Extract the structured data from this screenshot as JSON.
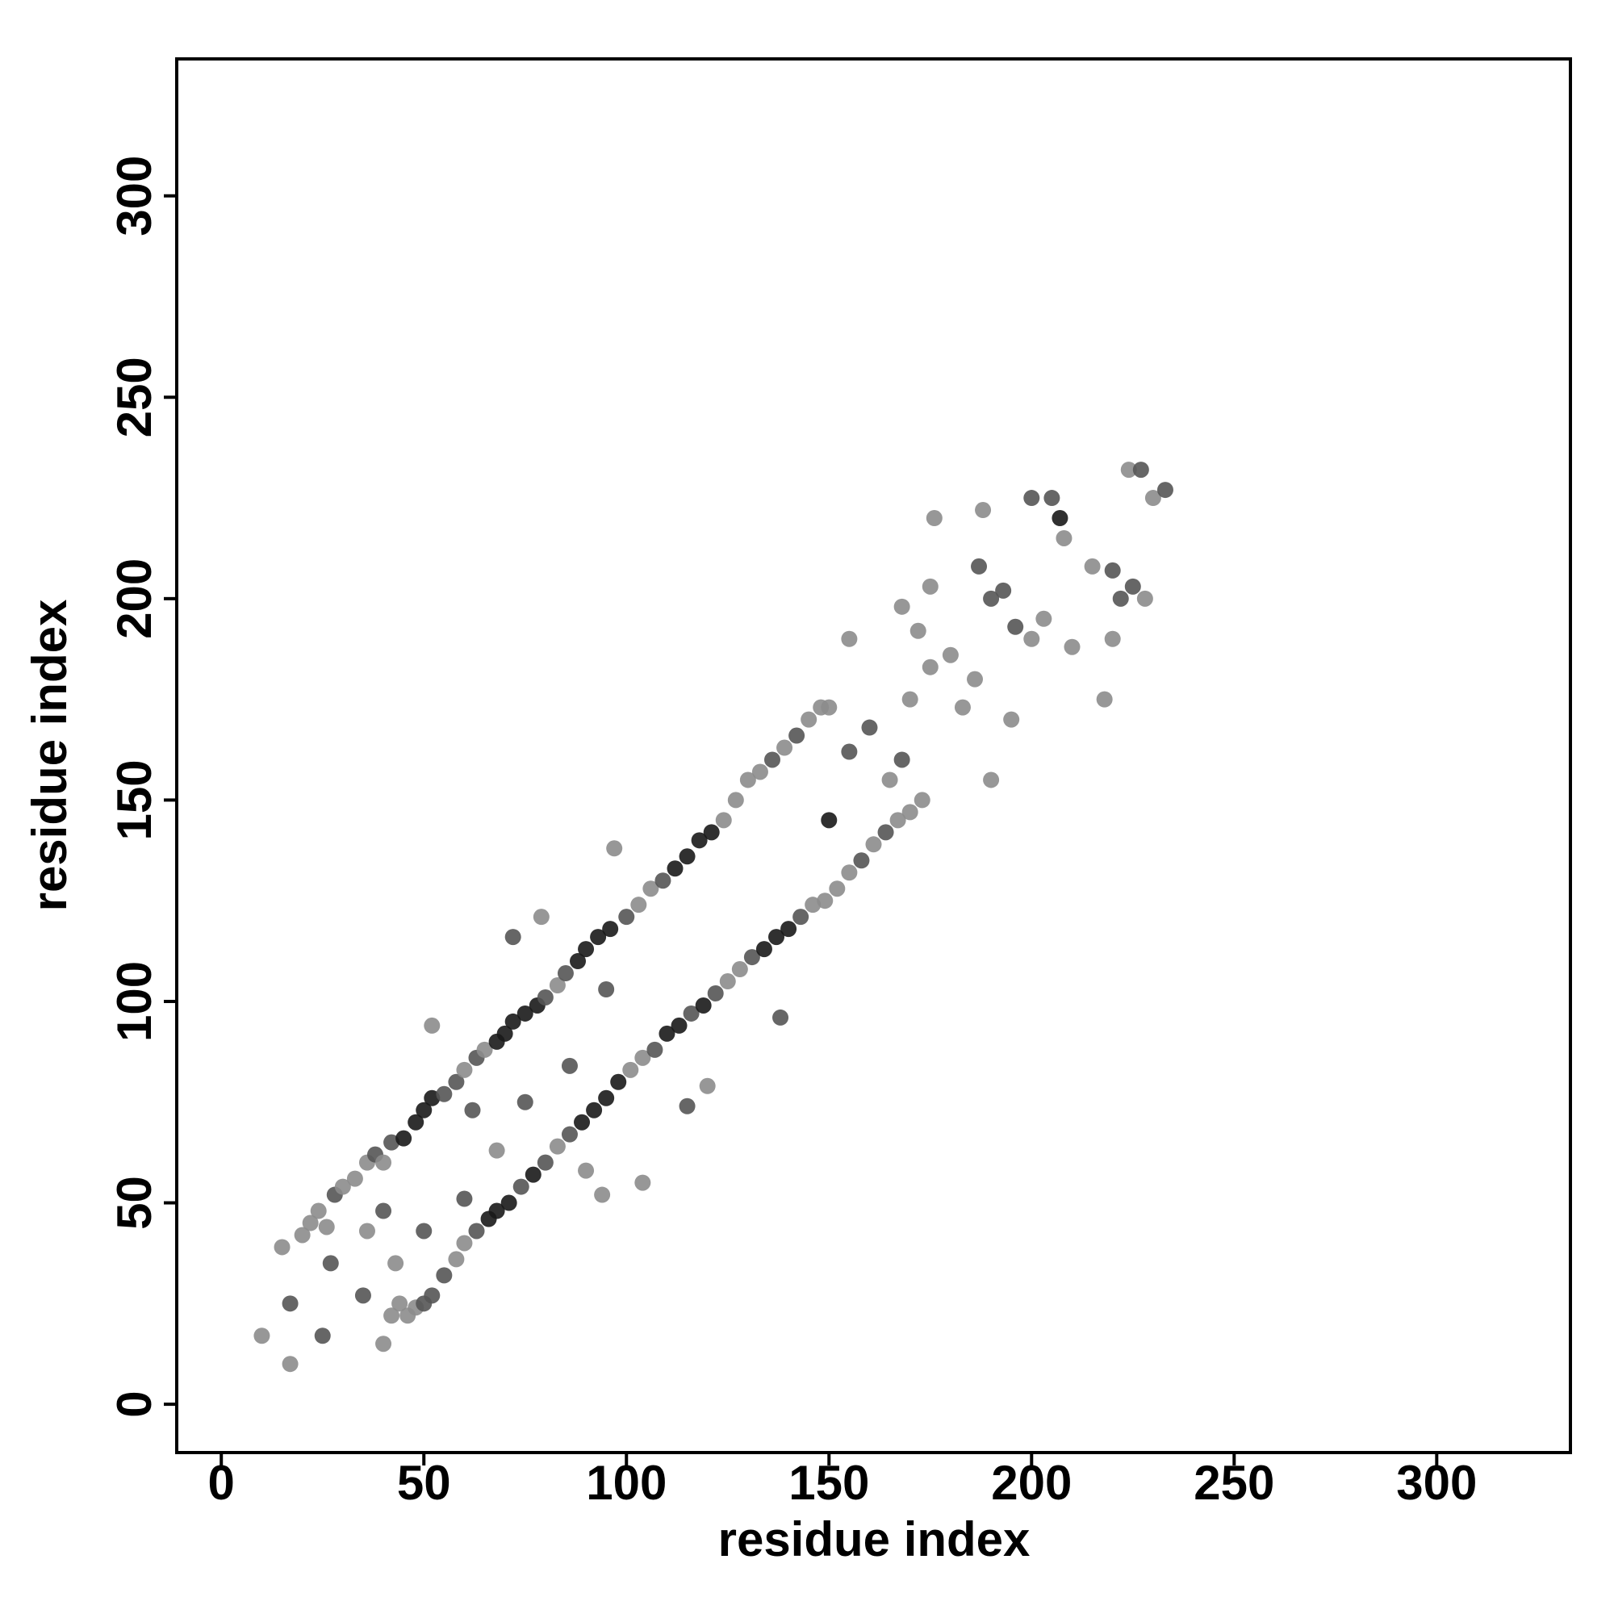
{
  "chart_data": {
    "type": "scatter",
    "xlabel": "residue index",
    "ylabel": "residue index",
    "xlim": [
      -11,
      333
    ],
    "ylim": [
      -12,
      334
    ],
    "xticks": [
      0,
      50,
      100,
      150,
      200,
      250,
      300
    ],
    "yticks": [
      0,
      50,
      100,
      150,
      200,
      250,
      300
    ],
    "x": [
      10,
      15,
      17,
      17,
      20,
      22,
      24,
      25,
      26,
      27,
      28,
      30,
      33,
      36,
      38,
      40,
      42,
      45,
      48,
      50,
      52,
      55,
      58,
      60,
      63,
      65,
      68,
      70,
      72,
      75,
      78,
      80,
      83,
      85,
      88,
      90,
      93,
      96,
      100,
      103,
      106,
      109,
      112,
      115,
      118,
      121,
      124,
      127,
      130,
      133,
      136,
      139,
      142,
      145,
      148,
      150,
      40,
      42,
      44,
      46,
      48,
      50,
      52,
      55,
      58,
      60,
      63,
      66,
      68,
      71,
      74,
      77,
      80,
      83,
      86,
      89,
      92,
      95,
      98,
      101,
      104,
      107,
      110,
      113,
      116,
      119,
      122,
      125,
      128,
      131,
      134,
      137,
      140,
      143,
      146,
      149,
      152,
      155,
      158,
      161,
      164,
      167,
      170,
      173,
      35,
      36,
      40,
      43,
      50,
      52,
      60,
      62,
      68,
      72,
      75,
      79,
      86,
      90,
      94,
      95,
      97,
      104,
      115,
      120,
      138,
      150,
      155,
      155,
      160,
      165,
      168,
      170,
      172,
      175,
      180,
      183,
      186,
      187,
      188,
      190,
      190,
      193,
      195,
      196,
      200,
      200,
      203,
      205,
      207,
      208,
      210,
      215,
      218,
      220,
      220,
      222,
      224,
      225,
      227,
      228,
      230,
      233,
      176,
      168,
      175
    ],
    "values": [
      17,
      39,
      10,
      25,
      42,
      45,
      48,
      17,
      44,
      35,
      52,
      54,
      56,
      60,
      62,
      60,
      65,
      66,
      70,
      73,
      76,
      77,
      80,
      83,
      86,
      88,
      90,
      92,
      95,
      97,
      99,
      101,
      104,
      107,
      110,
      113,
      116,
      118,
      121,
      124,
      128,
      130,
      133,
      136,
      140,
      142,
      145,
      150,
      155,
      157,
      160,
      163,
      166,
      170,
      173,
      173,
      15,
      22,
      25,
      22,
      24,
      25,
      27,
      32,
      36,
      40,
      43,
      46,
      48,
      50,
      54,
      57,
      60,
      64,
      67,
      70,
      73,
      76,
      80,
      83,
      86,
      88,
      92,
      94,
      97,
      99,
      102,
      105,
      108,
      111,
      113,
      116,
      118,
      121,
      124,
      125,
      128,
      132,
      135,
      139,
      142,
      145,
      147,
      150,
      27,
      43,
      48,
      35,
      43,
      94,
      51,
      73,
      63,
      116,
      75,
      121,
      84,
      58,
      52,
      103,
      138,
      55,
      74,
      79,
      96,
      145,
      162,
      190,
      168,
      155,
      160,
      175,
      192,
      183,
      186,
      173,
      180,
      208,
      222,
      155,
      200,
      202,
      170,
      193,
      225,
      190,
      195,
      225,
      220,
      215,
      188,
      208,
      175,
      207,
      190,
      200,
      232,
      203,
      232,
      200,
      225,
      227,
      220,
      198,
      203
    ],
    "colors": [
      "#8c8c8c",
      "#8c8c8c",
      "#8c8c8c",
      "#555555",
      "#8c8c8c",
      "#8c8c8c",
      "#8c8c8c",
      "#555555",
      "#8c8c8c",
      "#555555",
      "#555555",
      "#8c8c8c",
      "#8c8c8c",
      "#8c8c8c",
      "#555555",
      "#8c8c8c",
      "#555555",
      "#1a1a1a",
      "#1a1a1a",
      "#1a1a1a",
      "#1a1a1a",
      "#555555",
      "#555555",
      "#8c8c8c",
      "#555555",
      "#8c8c8c",
      "#1a1a1a",
      "#1a1a1a",
      "#1a1a1a",
      "#1a1a1a",
      "#1a1a1a",
      "#555555",
      "#8c8c8c",
      "#555555",
      "#1a1a1a",
      "#1a1a1a",
      "#1a1a1a",
      "#1a1a1a",
      "#555555",
      "#8c8c8c",
      "#8c8c8c",
      "#555555",
      "#1a1a1a",
      "#1a1a1a",
      "#1a1a1a",
      "#1a1a1a",
      "#8c8c8c",
      "#8c8c8c",
      "#8c8c8c",
      "#8c8c8c",
      "#555555",
      "#8c8c8c",
      "#555555",
      "#8c8c8c",
      "#8c8c8c",
      "#8c8c8c",
      "#8c8c8c",
      "#8c8c8c",
      "#8c8c8c",
      "#8c8c8c",
      "#8c8c8c",
      "#555555",
      "#555555",
      "#555555",
      "#8c8c8c",
      "#8c8c8c",
      "#555555",
      "#1a1a1a",
      "#1a1a1a",
      "#1a1a1a",
      "#555555",
      "#1a1a1a",
      "#555555",
      "#8c8c8c",
      "#555555",
      "#1a1a1a",
      "#1a1a1a",
      "#1a1a1a",
      "#1a1a1a",
      "#8c8c8c",
      "#8c8c8c",
      "#555555",
      "#1a1a1a",
      "#1a1a1a",
      "#555555",
      "#1a1a1a",
      "#555555",
      "#8c8c8c",
      "#8c8c8c",
      "#555555",
      "#1a1a1a",
      "#1a1a1a",
      "#1a1a1a",
      "#555555",
      "#8c8c8c",
      "#8c8c8c",
      "#8c8c8c",
      "#8c8c8c",
      "#555555",
      "#8c8c8c",
      "#555555",
      "#8c8c8c",
      "#8c8c8c",
      "#8c8c8c",
      "#555555",
      "#8c8c8c",
      "#555555",
      "#8c8c8c",
      "#555555",
      "#8c8c8c",
      "#555555",
      "#555555",
      "#8c8c8c",
      "#555555",
      "#555555",
      "#8c8c8c",
      "#555555",
      "#8c8c8c",
      "#8c8c8c",
      "#555555",
      "#8c8c8c",
      "#8c8c8c",
      "#555555",
      "#8c8c8c",
      "#555555",
      "#1a1a1a",
      "#555555",
      "#8c8c8c",
      "#555555",
      "#8c8c8c",
      "#555555",
      "#8c8c8c",
      "#8c8c8c",
      "#8c8c8c",
      "#8c8c8c",
      "#8c8c8c",
      "#8c8c8c",
      "#555555",
      "#8c8c8c",
      "#8c8c8c",
      "#555555",
      "#555555",
      "#8c8c8c",
      "#555555",
      "#555555",
      "#8c8c8c",
      "#8c8c8c",
      "#555555",
      "#1a1a1a",
      "#8c8c8c",
      "#8c8c8c",
      "#8c8c8c",
      "#8c8c8c",
      "#555555",
      "#8c8c8c",
      "#555555",
      "#8c8c8c",
      "#555555",
      "#555555",
      "#8c8c8c",
      "#8c8c8c",
      "#555555",
      "#8c8c8c",
      "#8c8c8c",
      "#8c8c8c"
    ]
  }
}
